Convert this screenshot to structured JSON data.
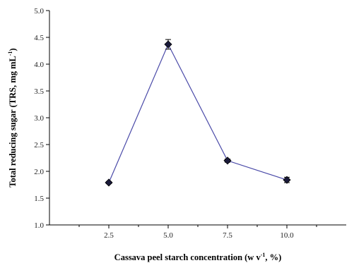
{
  "chart_data": {
    "type": "line",
    "title": "",
    "xlabel": {
      "main": "Cassava peel starch concentration (w v",
      "sup": "-1",
      "tail": ", %)"
    },
    "ylabel": {
      "main": "Total reducing sugar (TRS, mg mL",
      "sup": "-1",
      "tail": ")"
    },
    "x_tick_labels": [
      "2.5",
      "5.0",
      "7.5",
      "10.0"
    ],
    "y_tick_labels": [
      "1.0",
      "1.5",
      "2.0",
      "2.5",
      "3.0",
      "3.5",
      "4.0",
      "4.5",
      "5.0"
    ],
    "xlim": [
      0,
      12.5
    ],
    "ylim": [
      1.0,
      5.0
    ],
    "x": [
      2.5,
      5.0,
      7.5,
      10.0
    ],
    "series": [
      {
        "values": [
          1.79,
          4.37,
          2.2,
          1.84
        ],
        "errors": [
          0.02,
          0.09,
          0.03,
          0.05
        ],
        "line_color": "#4a4aa8",
        "marker": "diamond",
        "marker_color": "#1a1a3a"
      }
    ],
    "grid": false,
    "legend": "none"
  }
}
